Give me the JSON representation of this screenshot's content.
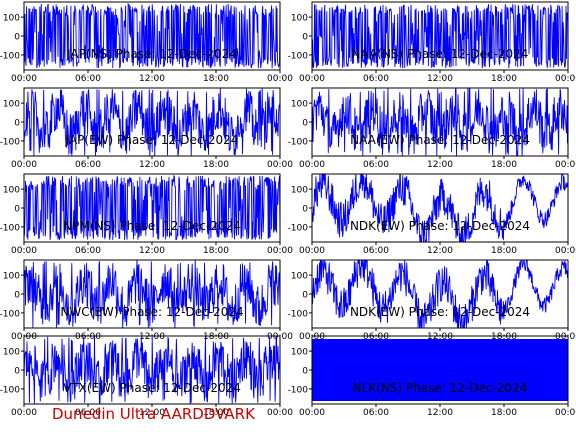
{
  "footer": "Dunedin Ultra AARDDVARK",
  "colors": {
    "trace": "#0000ff",
    "axis": "#000000",
    "footer": "#cc0000"
  },
  "chart_data": [
    {
      "type": "line",
      "title": "JAP(NS) Phase: 12-Dec-2024",
      "x_ticks": [
        "00:00",
        "06:00",
        "12:00",
        "18:00",
        "00:00"
      ],
      "y_ticks": [
        100,
        0,
        -100
      ],
      "ylim": [
        -180,
        180
      ],
      "signal": "dense"
    },
    {
      "type": "line",
      "title": "NAA(NS) Phase: 12-Dec-2024",
      "x_ticks": [
        "00:00",
        "06:00",
        "12:00",
        "18:00",
        "00:00"
      ],
      "y_ticks": [
        100,
        0,
        -100
      ],
      "ylim": [
        -180,
        180
      ],
      "signal": "dense"
    },
    {
      "type": "line",
      "title": "JAP(EW) Phase: 12-Dec-2024",
      "x_ticks": [
        "00:00",
        "06:00",
        "12:00",
        "18:00",
        "00:00"
      ],
      "y_ticks": [
        100,
        0,
        -100
      ],
      "ylim": [
        -180,
        180
      ],
      "signal": "noisy"
    },
    {
      "type": "line",
      "title": "NAA(EW) Phase: 12-Dec-2024",
      "x_ticks": [
        "00:00",
        "06:00",
        "12:00",
        "18:00",
        "00:00"
      ],
      "y_ticks": [
        100,
        0,
        -100
      ],
      "ylim": [
        -180,
        180
      ],
      "signal": "noisy"
    },
    {
      "type": "line",
      "title": "NPM(NS) Phase: 12-Dec-2024",
      "x_ticks": [
        "00:00",
        "06:00",
        "12:00",
        "18:00",
        "00:00"
      ],
      "y_ticks": [
        100,
        0,
        -100
      ],
      "ylim": [
        -180,
        180
      ],
      "signal": "dense"
    },
    {
      "type": "line",
      "title": "NDK(EW) Phase: 12-Dec-2024",
      "x_ticks": [
        "00:00",
        "06:00",
        "12:00",
        "18:00",
        "00:00"
      ],
      "y_ticks": [
        100,
        0,
        -100
      ],
      "ylim": [
        -180,
        180
      ],
      "signal": "wave"
    },
    {
      "type": "line",
      "title": "NWC(EW) Phase: 12-Dec-2024",
      "x_ticks": [
        "00:00",
        "06:00",
        "12:00",
        "18:00",
        "00:00"
      ],
      "y_ticks": [
        100,
        0,
        -100
      ],
      "ylim": [
        -180,
        180
      ],
      "signal": "noisy"
    },
    {
      "type": "line",
      "title": "NDK(EW) Phase: 12-Dec-2024",
      "x_ticks": [
        "00:00",
        "06:00",
        "12:00",
        "18:00",
        "00:00"
      ],
      "y_ticks": [
        100,
        0,
        -100
      ],
      "ylim": [
        -180,
        180
      ],
      "signal": "wave"
    },
    {
      "type": "line",
      "title": "VTX(EW) Phase: 12-Dec-2024",
      "x_ticks": [
        "00:00",
        "06:00",
        "12:00",
        "18:00",
        "00:00"
      ],
      "y_ticks": [
        100,
        0,
        -100
      ],
      "ylim": [
        -180,
        180
      ],
      "signal": "noisy"
    },
    {
      "type": "line",
      "title": "NLK(NS) Phase: 12-Dec-2024",
      "x_ticks": [
        "00:00",
        "06:00",
        "12:00",
        "18:00",
        "00:00"
      ],
      "y_ticks": [
        100,
        0,
        -100
      ],
      "ylim": [
        -180,
        180
      ],
      "signal": "solid"
    }
  ]
}
